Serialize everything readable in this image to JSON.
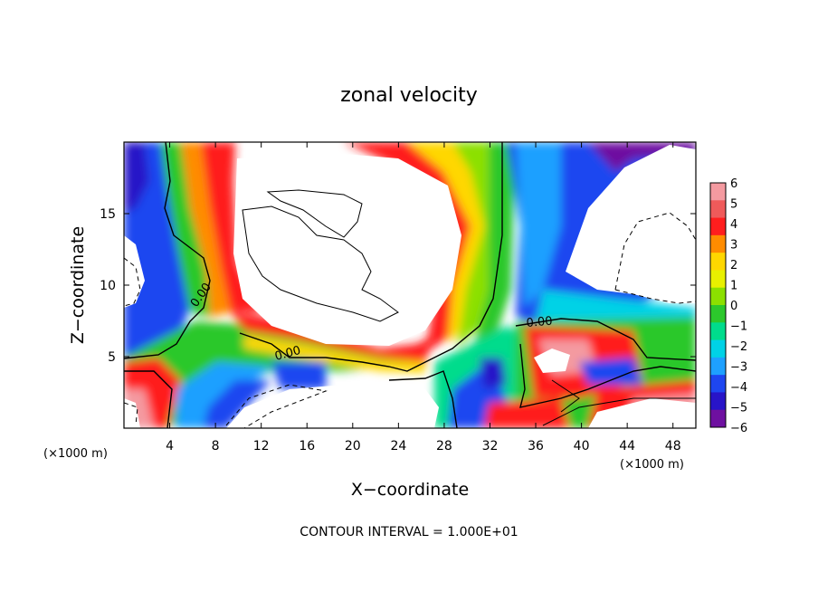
{
  "chart_data": {
    "type": "heatmap",
    "title": "zonal velocity",
    "xlabel": "X−coordinate",
    "ylabel": "Z−coordinate",
    "x_unit": "(×1000 m)",
    "z_unit": "(×1000 m)",
    "x_ticks": [
      "4",
      "8",
      "12",
      "16",
      "20",
      "24",
      "28",
      "32",
      "36",
      "40",
      "44",
      "48"
    ],
    "y_ticks": [
      "5",
      "10",
      "15"
    ],
    "xlim": [
      0,
      50
    ],
    "ylim": [
      0,
      20
    ],
    "colorbar": {
      "levels": [
        "6",
        "5",
        "4",
        "3",
        "2",
        "1",
        "0",
        "−1",
        "−2",
        "−3",
        "−4",
        "−5",
        "−6"
      ],
      "range": [
        -6,
        6
      ],
      "colors": [
        "#f49aa0",
        "#ef5a5a",
        "#ff1e1e",
        "#ff8c00",
        "#ffd700",
        "#e8f000",
        "#8ce000",
        "#2cc82c",
        "#00dc8c",
        "#00d2e6",
        "#1ea0ff",
        "#1e46f0",
        "#2814c8",
        "#6e10a0"
      ]
    },
    "contour_labels": [
      "0.00",
      "0.00",
      "0.00"
    ],
    "contour_interval_text": "CONTOUR INTERVAL = 1.000E+01"
  }
}
